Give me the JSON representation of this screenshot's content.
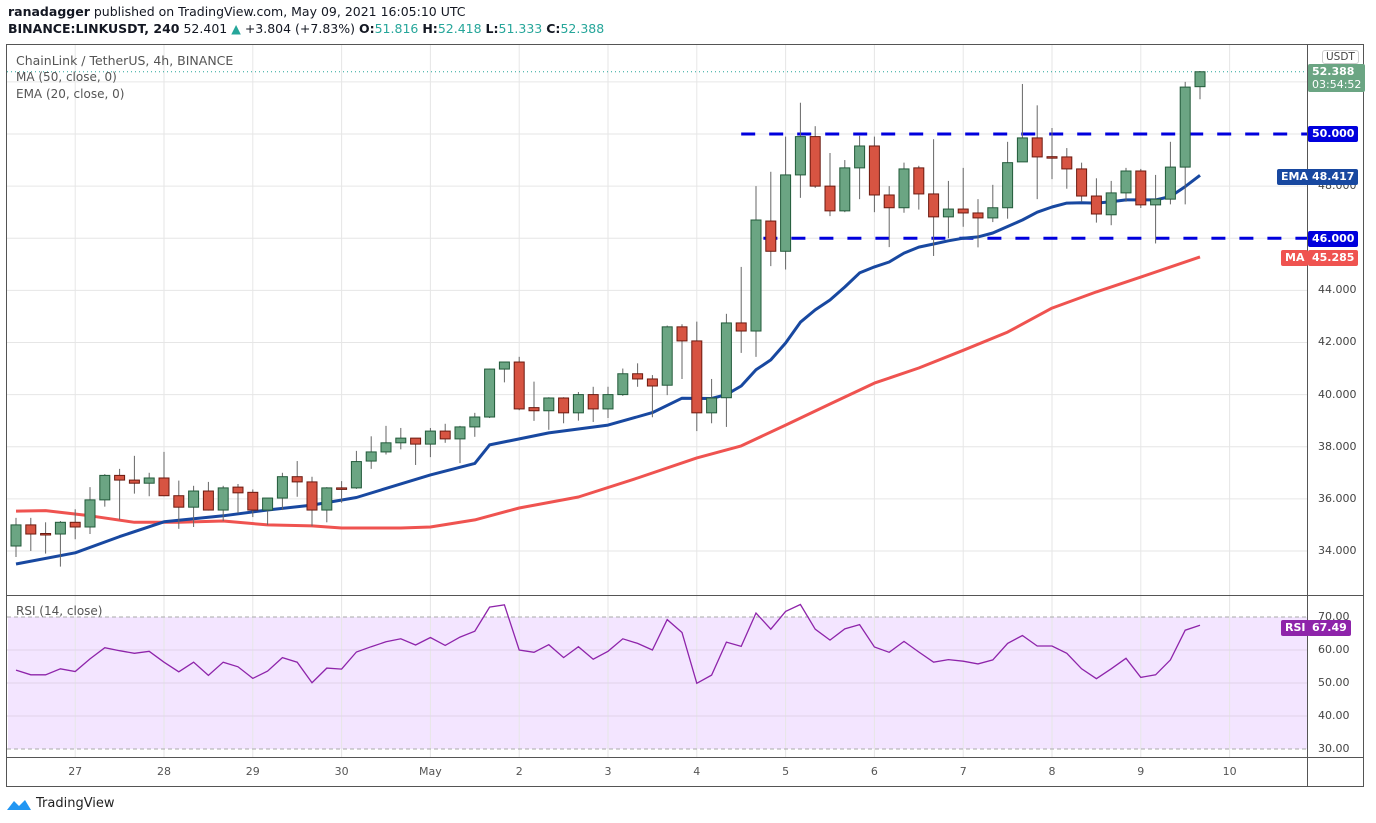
{
  "header": {
    "author": "ranadagger",
    "published": "published on TradingView.com, May 09, 2021 16:05:10 UTC",
    "symbol": "BINANCE:LINKUSDT, 240",
    "last": "52.401",
    "change": "+3.804 (+7.83%)",
    "o_label": "O:",
    "o": "51.816",
    "h_label": "H:",
    "h": "52.418",
    "l_label": "L:",
    "l": "51.333",
    "c_label": "C:",
    "c": "52.388"
  },
  "legend": {
    "title": "ChainLink / TetherUS, 4h, BINANCE",
    "ma": "MA (50, close, 0)",
    "ema": "EMA (20, close, 0)",
    "rsi": "RSI (14, close)"
  },
  "price_axis": {
    "currency": "USDT",
    "ticks": [
      "34.000",
      "36.000",
      "38.000",
      "40.000",
      "42.000",
      "44.000",
      "48.000"
    ],
    "tick_values": [
      34,
      36,
      38,
      40,
      42,
      44,
      48
    ],
    "last_price": "52.388",
    "countdown": "03:54:52",
    "level_50": "50.000",
    "level_46": "46.000",
    "ema_label": "EMA",
    "ema_value": "48.417",
    "ma_label": "MA",
    "ma_value": "45.285"
  },
  "rsi_axis": {
    "ticks": [
      "70.00",
      "60.00",
      "50.00",
      "40.00",
      "30.00"
    ],
    "tick_values": [
      70,
      60,
      50,
      40,
      30
    ],
    "label": "RSI",
    "value": "67.49"
  },
  "time_axis": [
    "27",
    "28",
    "29",
    "30",
    "May",
    "2",
    "3",
    "4",
    "5",
    "6",
    "7",
    "8",
    "9",
    "10"
  ],
  "footer": {
    "brand": "TradingView"
  },
  "colors": {
    "up": "#6ba583",
    "down": "#d75442",
    "ema": "#1848a0",
    "ma": "#ef5350",
    "level": "#0000dd",
    "rsi": "#8e24aa",
    "rsi_bg": "#f3e5ff"
  },
  "chart_data": {
    "type": "candlestick",
    "title": "ChainLink / TetherUS, 4h, BINANCE",
    "interval": "4h",
    "ylim": [
      32.5,
      52.9
    ],
    "candles_ohlc": [
      [
        34.19,
        35.27,
        33.77,
        35.0
      ],
      [
        35.0,
        35.27,
        34.0,
        34.65
      ],
      [
        34.67,
        35.1,
        33.9,
        34.66
      ],
      [
        34.65,
        35.15,
        33.4,
        35.1
      ],
      [
        35.1,
        35.6,
        34.45,
        34.92
      ],
      [
        34.92,
        36.45,
        34.65,
        35.96
      ],
      [
        35.96,
        36.95,
        35.7,
        36.9
      ],
      [
        36.9,
        37.15,
        35.2,
        36.72
      ],
      [
        36.72,
        37.65,
        36.2,
        36.6
      ],
      [
        36.6,
        37.0,
        36.1,
        36.8
      ],
      [
        36.8,
        37.8,
        36.1,
        36.12
      ],
      [
        36.12,
        36.7,
        34.85,
        35.68
      ],
      [
        35.68,
        36.5,
        34.92,
        36.3
      ],
      [
        36.3,
        36.65,
        35.55,
        35.57
      ],
      [
        35.57,
        36.5,
        35.15,
        36.42
      ],
      [
        36.45,
        36.57,
        35.45,
        36.23
      ],
      [
        36.25,
        36.36,
        35.3,
        35.57
      ],
      [
        35.57,
        36.03,
        35.0,
        36.03
      ],
      [
        36.03,
        37.0,
        35.57,
        36.85
      ],
      [
        36.85,
        37.45,
        36.08,
        36.65
      ],
      [
        36.65,
        36.85,
        34.95,
        35.57
      ],
      [
        35.57,
        36.45,
        35.1,
        36.42
      ],
      [
        36.42,
        36.68,
        35.85,
        36.4
      ],
      [
        36.42,
        37.84,
        36.38,
        37.43
      ],
      [
        37.45,
        38.4,
        37.15,
        37.8
      ],
      [
        37.8,
        38.8,
        37.7,
        38.15
      ],
      [
        38.15,
        38.72,
        37.9,
        38.33
      ],
      [
        38.33,
        38.33,
        37.3,
        38.1
      ],
      [
        38.1,
        38.72,
        37.6,
        38.6
      ],
      [
        38.6,
        38.88,
        38.15,
        38.3
      ],
      [
        38.3,
        38.8,
        37.37,
        38.76
      ],
      [
        38.76,
        39.3,
        38.38,
        39.14
      ],
      [
        39.14,
        41.0,
        39.1,
        40.98
      ],
      [
        40.98,
        41.25,
        40.47,
        41.25
      ],
      [
        41.25,
        41.45,
        39.4,
        39.45
      ],
      [
        39.5,
        40.5,
        38.99,
        39.38
      ],
      [
        39.38,
        39.9,
        38.65,
        39.87
      ],
      [
        39.87,
        39.9,
        38.9,
        39.3
      ],
      [
        39.3,
        40.1,
        39.0,
        40.0
      ],
      [
        40.0,
        40.3,
        38.95,
        39.45
      ],
      [
        39.45,
        40.3,
        39.1,
        40.0
      ],
      [
        40.0,
        41.0,
        39.95,
        40.8
      ],
      [
        40.8,
        41.2,
        40.3,
        40.6
      ],
      [
        40.6,
        40.75,
        39.13,
        40.33
      ],
      [
        40.36,
        42.65,
        39.98,
        42.6
      ],
      [
        42.6,
        42.7,
        40.6,
        42.06
      ],
      [
        42.06,
        42.8,
        38.6,
        39.3
      ],
      [
        39.3,
        40.6,
        38.9,
        39.87
      ],
      [
        39.88,
        43.1,
        38.76,
        42.75
      ],
      [
        42.75,
        44.9,
        41.6,
        42.44
      ],
      [
        42.44,
        48.0,
        41.45,
        46.7
      ],
      [
        46.66,
        48.55,
        44.93,
        45.5
      ],
      [
        45.5,
        49.9,
        44.8,
        48.43
      ],
      [
        48.43,
        51.2,
        47.55,
        49.9
      ],
      [
        49.9,
        50.3,
        47.93,
        48.0
      ],
      [
        48.0,
        49.27,
        46.85,
        47.05
      ],
      [
        47.05,
        49.0,
        47.0,
        48.7
      ],
      [
        48.7,
        49.93,
        47.5,
        49.54
      ],
      [
        49.54,
        49.9,
        47.0,
        47.66
      ],
      [
        47.66,
        48.0,
        45.66,
        47.17
      ],
      [
        47.17,
        48.9,
        46.98,
        48.66
      ],
      [
        48.7,
        48.78,
        47.1,
        47.7
      ],
      [
        47.7,
        49.8,
        45.32,
        46.82
      ],
      [
        46.82,
        48.2,
        46.0,
        47.12
      ],
      [
        47.12,
        48.7,
        46.44,
        46.97
      ],
      [
        46.97,
        47.5,
        45.65,
        46.78
      ],
      [
        46.78,
        48.05,
        46.62,
        47.17
      ],
      [
        47.17,
        49.7,
        46.75,
        48.9
      ],
      [
        48.93,
        51.92,
        48.93,
        49.85
      ],
      [
        49.85,
        51.1,
        47.5,
        49.12
      ],
      [
        49.13,
        50.23,
        48.27,
        49.12
      ],
      [
        49.12,
        49.46,
        47.9,
        48.66
      ],
      [
        48.66,
        48.9,
        47.4,
        47.62
      ],
      [
        47.62,
        48.3,
        46.6,
        46.93
      ],
      [
        46.9,
        48.2,
        46.5,
        47.74
      ],
      [
        47.74,
        48.7,
        47.4,
        48.58
      ],
      [
        48.58,
        48.66,
        47.16,
        47.28
      ],
      [
        47.28,
        48.43,
        45.8,
        47.5
      ],
      [
        47.5,
        49.7,
        47.3,
        48.73
      ],
      [
        48.73,
        52.0,
        47.3,
        51.8
      ],
      [
        51.816,
        52.418,
        51.333,
        52.388
      ]
    ],
    "ema20_points": [
      [
        0,
        33.5
      ],
      [
        4,
        33.93
      ],
      [
        7,
        34.55
      ],
      [
        10,
        35.12
      ],
      [
        14,
        35.35
      ],
      [
        17,
        35.57
      ],
      [
        20,
        35.76
      ],
      [
        23,
        36.05
      ],
      [
        28,
        36.92
      ],
      [
        31,
        37.36
      ],
      [
        32,
        38.07
      ],
      [
        36,
        38.53
      ],
      [
        40,
        38.83
      ],
      [
        43,
        39.31
      ],
      [
        45,
        39.86
      ],
      [
        47,
        39.85
      ],
      [
        48,
        40.0
      ],
      [
        49,
        40.33
      ],
      [
        50,
        40.95
      ],
      [
        51,
        41.33
      ],
      [
        52,
        41.98
      ],
      [
        53,
        42.78
      ],
      [
        54,
        43.25
      ],
      [
        55,
        43.63
      ],
      [
        56,
        44.13
      ],
      [
        57,
        44.67
      ],
      [
        58,
        44.9
      ],
      [
        59,
        45.09
      ],
      [
        60,
        45.43
      ],
      [
        61,
        45.66
      ],
      [
        62,
        45.78
      ],
      [
        63,
        45.9
      ],
      [
        64,
        46.0
      ],
      [
        65,
        46.05
      ],
      [
        66,
        46.2
      ],
      [
        67,
        46.45
      ],
      [
        68,
        46.7
      ],
      [
        69,
        47.0
      ],
      [
        70,
        47.2
      ],
      [
        71,
        47.35
      ],
      [
        72,
        47.36
      ],
      [
        73,
        47.35
      ],
      [
        74,
        47.4
      ],
      [
        75,
        47.47
      ],
      [
        77,
        47.47
      ],
      [
        78,
        47.6
      ],
      [
        79,
        47.98
      ],
      [
        80,
        48.417
      ]
    ],
    "ma50_points": [
      [
        0,
        35.53
      ],
      [
        2,
        35.55
      ],
      [
        5,
        35.35
      ],
      [
        8,
        35.1
      ],
      [
        11,
        35.1
      ],
      [
        14,
        35.15
      ],
      [
        17,
        35.0
      ],
      [
        20,
        34.96
      ],
      [
        22,
        34.88
      ],
      [
        26,
        34.88
      ],
      [
        28,
        34.92
      ],
      [
        31,
        35.19
      ],
      [
        34,
        35.65
      ],
      [
        38,
        36.07
      ],
      [
        42,
        36.8
      ],
      [
        46,
        37.57
      ],
      [
        49,
        38.03
      ],
      [
        52,
        38.83
      ],
      [
        55,
        39.64
      ],
      [
        58,
        40.44
      ],
      [
        61,
        41.02
      ],
      [
        64,
        41.7
      ],
      [
        67,
        42.4
      ],
      [
        70,
        43.32
      ],
      [
        73,
        43.94
      ],
      [
        76,
        44.51
      ],
      [
        80,
        45.285
      ]
    ],
    "levels": [
      {
        "price": 50.0,
        "from_index": 49
      },
      {
        "price": 46.0,
        "from_index": 50.5
      }
    ],
    "rsi": [
      53.9,
      52.5,
      52.5,
      54.3,
      53.5,
      57.3,
      60.7,
      59.8,
      59.0,
      59.6,
      56.3,
      53.4,
      56.3,
      52.3,
      56.3,
      54.9,
      51.4,
      53.6,
      57.7,
      56.3,
      50.1,
      54.5,
      54.2,
      59.4,
      61.0,
      62.5,
      63.4,
      61.5,
      63.8,
      61.4,
      63.9,
      65.7,
      73.0,
      73.7,
      60.0,
      59.3,
      61.6,
      57.7,
      61.0,
      57.2,
      59.6,
      63.4,
      62.0,
      60.0,
      69.2,
      65.3,
      49.9,
      52.4,
      62.4,
      61.1,
      71.2,
      66.3,
      71.7,
      73.8,
      66.3,
      63.0,
      66.4,
      67.7,
      60.9,
      59.3,
      62.6,
      59.4,
      56.3,
      57.1,
      56.6,
      55.8,
      57.0,
      62.0,
      64.4,
      61.2,
      61.2,
      59.0,
      54.3,
      51.3,
      54.3,
      57.5,
      51.7,
      52.5,
      57.0,
      66.0,
      67.49
    ],
    "rsi_band": [
      30,
      70
    ]
  }
}
